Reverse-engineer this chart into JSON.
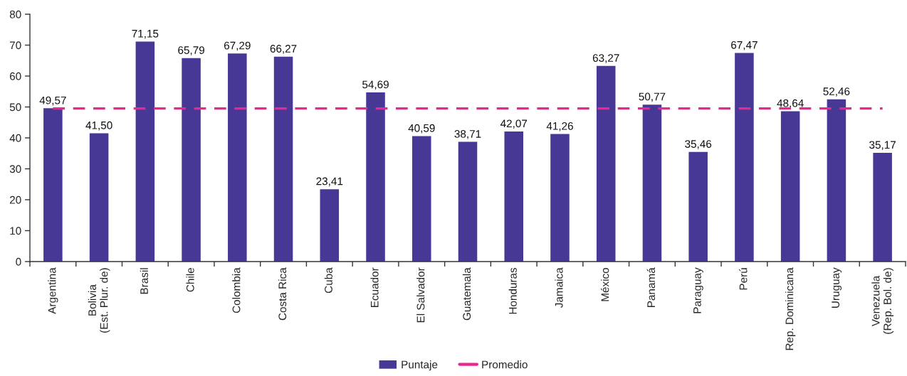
{
  "chart_data": {
    "type": "bar",
    "categories": [
      "Argentina",
      "Bolivia\n(Est. Plur. de)",
      "Brasil",
      "Chile",
      "Colombia",
      "Costa Rica",
      "Cuba",
      "Ecuador",
      "El Salvador",
      "Guatemala",
      "Honduras",
      "Jamaica",
      "México",
      "Panamá",
      "Paraguay",
      "Perú",
      "Rep. Dominicana",
      "Uruguay",
      "Venezuela\n(Rep. Bol. de)"
    ],
    "series": [
      {
        "name": "Puntaje",
        "color": "#483895",
        "values": [
          49.57,
          41.5,
          71.15,
          65.79,
          67.29,
          66.27,
          23.41,
          54.69,
          40.59,
          38.71,
          42.07,
          41.26,
          63.27,
          50.77,
          35.46,
          67.47,
          48.64,
          52.46,
          35.17
        ],
        "value_labels": [
          "49,57",
          "41,50",
          "71,15",
          "65,79",
          "67,29",
          "66,27",
          "23,41",
          "54,69",
          "40,59",
          "38,71",
          "42,07",
          "41,26",
          "63,27",
          "50,77",
          "35,46",
          "67,47",
          "48,64",
          "52,46",
          "35,17"
        ]
      },
      {
        "name": "Promedio",
        "type": "line",
        "color": "#e8288f",
        "line_style": "dashed",
        "marker": "none",
        "values": [
          49.5,
          49.5,
          49.5,
          49.5,
          49.5,
          49.5,
          49.5,
          49.5,
          49.5,
          49.5,
          49.5,
          49.5,
          49.5,
          49.5,
          49.5,
          49.5,
          49.5,
          49.5,
          49.5
        ]
      }
    ],
    "ylim": [
      0,
      80
    ],
    "yticks": [
      0,
      10,
      20,
      30,
      40,
      50,
      60,
      70,
      80
    ],
    "grid": false,
    "legend": "bottom"
  }
}
